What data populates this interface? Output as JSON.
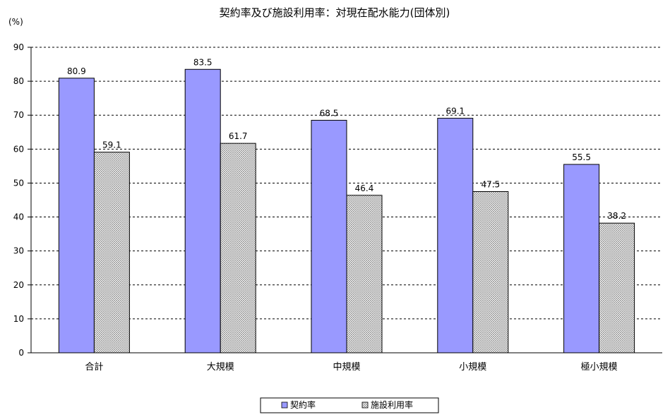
{
  "chart_data": {
    "type": "bar",
    "title": "契約率及び施設利用率：対現在配水能力(団体別)",
    "unit_label": "(%)",
    "categories": [
      "合計",
      "大規模",
      "中規模",
      "小規模",
      "極小規模"
    ],
    "series": [
      {
        "name": "契約率",
        "values": [
          80.9,
          83.5,
          68.5,
          69.1,
          55.5
        ],
        "color": "#9999ff",
        "pattern": "solid"
      },
      {
        "name": "施設利用率",
        "values": [
          59.1,
          61.7,
          46.4,
          47.5,
          38.2
        ],
        "color": "#ffffff",
        "pattern": "crosshatch"
      }
    ],
    "ylim": [
      0,
      90
    ],
    "yticks": [
      0,
      10,
      20,
      30,
      40,
      50,
      60,
      70,
      80,
      90
    ],
    "grid": "horizontal-dashed",
    "legend_position": "bottom-center",
    "data_labels": true
  }
}
